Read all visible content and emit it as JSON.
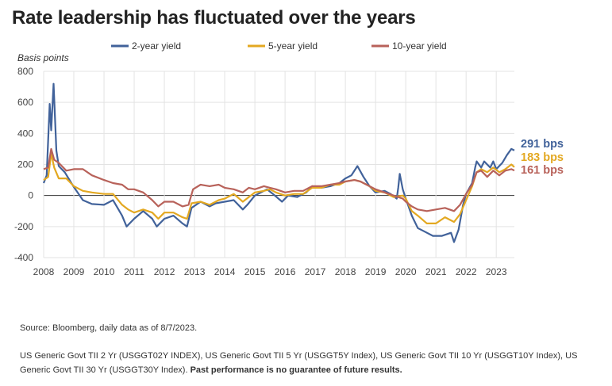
{
  "chart_data": {
    "type": "line",
    "title": "Rate leadership has fluctuated over the years",
    "ylabel": "Basis points",
    "xlabel": "",
    "ylim": [
      -400,
      800
    ],
    "yticks": [
      800,
      600,
      400,
      200,
      0,
      -200,
      -400
    ],
    "xlim": [
      2008,
      2023.6
    ],
    "xticks": [
      "2008",
      "2009",
      "2010",
      "2011",
      "2012",
      "2013",
      "2014",
      "2015",
      "2016",
      "2017",
      "2018",
      "2019",
      "2020",
      "2021",
      "2022",
      "2023"
    ],
    "grid": true,
    "legend_position": "top",
    "series": [
      {
        "name": "2-year yield",
        "color": "#41629a",
        "points": [
          [
            2008.0,
            80
          ],
          [
            2008.1,
            130
          ],
          [
            2008.2,
            590
          ],
          [
            2008.25,
            420
          ],
          [
            2008.33,
            720
          ],
          [
            2008.42,
            290
          ],
          [
            2008.5,
            190
          ],
          [
            2008.7,
            150
          ],
          [
            2009.0,
            55
          ],
          [
            2009.3,
            -30
          ],
          [
            2009.6,
            -55
          ],
          [
            2010.0,
            -60
          ],
          [
            2010.3,
            -30
          ],
          [
            2010.6,
            -130
          ],
          [
            2010.75,
            -200
          ],
          [
            2011.0,
            -150
          ],
          [
            2011.3,
            -100
          ],
          [
            2011.6,
            -150
          ],
          [
            2011.75,
            -200
          ],
          [
            2012.0,
            -150
          ],
          [
            2012.3,
            -130
          ],
          [
            2012.6,
            -180
          ],
          [
            2012.75,
            -200
          ],
          [
            2012.9,
            -80
          ],
          [
            2013.2,
            -40
          ],
          [
            2013.5,
            -70
          ],
          [
            2013.7,
            -50
          ],
          [
            2014.0,
            -40
          ],
          [
            2014.3,
            -30
          ],
          [
            2014.6,
            -90
          ],
          [
            2014.75,
            -60
          ],
          [
            2015.0,
            0
          ],
          [
            2015.2,
            20
          ],
          [
            2015.4,
            40
          ],
          [
            2015.6,
            10
          ],
          [
            2015.9,
            -40
          ],
          [
            2016.1,
            0
          ],
          [
            2016.4,
            -10
          ],
          [
            2016.7,
            20
          ],
          [
            2016.9,
            60
          ],
          [
            2017.2,
            50
          ],
          [
            2017.5,
            60
          ],
          [
            2017.8,
            80
          ],
          [
            2018.0,
            110
          ],
          [
            2018.2,
            130
          ],
          [
            2018.4,
            190
          ],
          [
            2018.6,
            120
          ],
          [
            2018.8,
            60
          ],
          [
            2019.0,
            20
          ],
          [
            2019.3,
            30
          ],
          [
            2019.5,
            10
          ],
          [
            2019.7,
            -20
          ],
          [
            2019.75,
            50
          ],
          [
            2019.8,
            140
          ],
          [
            2019.9,
            40
          ],
          [
            2020.0,
            -20
          ],
          [
            2020.2,
            -130
          ],
          [
            2020.4,
            -210
          ],
          [
            2020.6,
            -230
          ],
          [
            2020.9,
            -260
          ],
          [
            2021.2,
            -260
          ],
          [
            2021.5,
            -240
          ],
          [
            2021.6,
            -300
          ],
          [
            2021.75,
            -220
          ],
          [
            2021.9,
            -60
          ],
          [
            2022.0,
            10
          ],
          [
            2022.2,
            80
          ],
          [
            2022.3,
            180
          ],
          [
            2022.35,
            220
          ],
          [
            2022.5,
            180
          ],
          [
            2022.6,
            220
          ],
          [
            2022.8,
            180
          ],
          [
            2022.9,
            220
          ],
          [
            2023.0,
            170
          ],
          [
            2023.2,
            210
          ],
          [
            2023.35,
            260
          ],
          [
            2023.5,
            300
          ],
          [
            2023.6,
            291
          ]
        ]
      },
      {
        "name": "5-year yield",
        "color": "#e3a821",
        "points": [
          [
            2008.0,
            100
          ],
          [
            2008.15,
            120
          ],
          [
            2008.25,
            270
          ],
          [
            2008.35,
            180
          ],
          [
            2008.5,
            110
          ],
          [
            2008.75,
            110
          ],
          [
            2009.0,
            60
          ],
          [
            2009.3,
            30
          ],
          [
            2009.6,
            20
          ],
          [
            2010.0,
            10
          ],
          [
            2010.3,
            10
          ],
          [
            2010.6,
            -60
          ],
          [
            2010.8,
            -90
          ],
          [
            2011.0,
            -110
          ],
          [
            2011.3,
            -90
          ],
          [
            2011.6,
            -110
          ],
          [
            2011.8,
            -150
          ],
          [
            2012.0,
            -110
          ],
          [
            2012.3,
            -110
          ],
          [
            2012.6,
            -140
          ],
          [
            2012.75,
            -150
          ],
          [
            2012.9,
            -50
          ],
          [
            2013.2,
            -40
          ],
          [
            2013.5,
            -60
          ],
          [
            2013.8,
            -30
          ],
          [
            2014.0,
            -20
          ],
          [
            2014.3,
            10
          ],
          [
            2014.6,
            -40
          ],
          [
            2014.8,
            -10
          ],
          [
            2015.0,
            20
          ],
          [
            2015.3,
            30
          ],
          [
            2015.5,
            40
          ],
          [
            2015.7,
            20
          ],
          [
            2016.0,
            0
          ],
          [
            2016.3,
            10
          ],
          [
            2016.6,
            10
          ],
          [
            2016.9,
            50
          ],
          [
            2017.2,
            50
          ],
          [
            2017.5,
            70
          ],
          [
            2017.8,
            70
          ],
          [
            2018.0,
            90
          ],
          [
            2018.3,
            100
          ],
          [
            2018.5,
            90
          ],
          [
            2018.8,
            60
          ],
          [
            2019.0,
            30
          ],
          [
            2019.3,
            20
          ],
          [
            2019.6,
            -10
          ],
          [
            2019.9,
            0
          ],
          [
            2020.0,
            -20
          ],
          [
            2020.2,
            -100
          ],
          [
            2020.4,
            -130
          ],
          [
            2020.7,
            -180
          ],
          [
            2021.0,
            -180
          ],
          [
            2021.3,
            -140
          ],
          [
            2021.6,
            -170
          ],
          [
            2021.8,
            -120
          ],
          [
            2022.0,
            -30
          ],
          [
            2022.2,
            60
          ],
          [
            2022.35,
            150
          ],
          [
            2022.5,
            170
          ],
          [
            2022.7,
            150
          ],
          [
            2022.9,
            180
          ],
          [
            2023.1,
            150
          ],
          [
            2023.3,
            170
          ],
          [
            2023.5,
            200
          ],
          [
            2023.6,
            183
          ]
        ]
      },
      {
        "name": "10-year yield",
        "color": "#b8625a",
        "points": [
          [
            2008.0,
            170
          ],
          [
            2008.15,
            180
          ],
          [
            2008.25,
            300
          ],
          [
            2008.35,
            230
          ],
          [
            2008.5,
            210
          ],
          [
            2008.75,
            160
          ],
          [
            2009.0,
            170
          ],
          [
            2009.3,
            170
          ],
          [
            2009.6,
            130
          ],
          [
            2010.0,
            100
          ],
          [
            2010.3,
            80
          ],
          [
            2010.6,
            70
          ],
          [
            2010.8,
            40
          ],
          [
            2011.0,
            40
          ],
          [
            2011.3,
            20
          ],
          [
            2011.6,
            -30
          ],
          [
            2011.8,
            -70
          ],
          [
            2012.0,
            -40
          ],
          [
            2012.3,
            -40
          ],
          [
            2012.6,
            -70
          ],
          [
            2012.8,
            -60
          ],
          [
            2012.95,
            40
          ],
          [
            2013.2,
            70
          ],
          [
            2013.5,
            60
          ],
          [
            2013.8,
            70
          ],
          [
            2014.0,
            50
          ],
          [
            2014.3,
            40
          ],
          [
            2014.6,
            20
          ],
          [
            2014.8,
            50
          ],
          [
            2015.0,
            40
          ],
          [
            2015.3,
            60
          ],
          [
            2015.5,
            50
          ],
          [
            2015.7,
            40
          ],
          [
            2016.0,
            20
          ],
          [
            2016.3,
            30
          ],
          [
            2016.6,
            30
          ],
          [
            2016.9,
            60
          ],
          [
            2017.2,
            60
          ],
          [
            2017.5,
            70
          ],
          [
            2017.8,
            80
          ],
          [
            2018.0,
            90
          ],
          [
            2018.3,
            100
          ],
          [
            2018.5,
            90
          ],
          [
            2018.8,
            60
          ],
          [
            2019.0,
            40
          ],
          [
            2019.3,
            20
          ],
          [
            2019.6,
            0
          ],
          [
            2019.9,
            -20
          ],
          [
            2020.0,
            -40
          ],
          [
            2020.2,
            -70
          ],
          [
            2020.4,
            -90
          ],
          [
            2020.7,
            -100
          ],
          [
            2021.0,
            -90
          ],
          [
            2021.3,
            -80
          ],
          [
            2021.6,
            -100
          ],
          [
            2021.8,
            -60
          ],
          [
            2022.0,
            10
          ],
          [
            2022.2,
            70
          ],
          [
            2022.35,
            150
          ],
          [
            2022.5,
            160
          ],
          [
            2022.7,
            120
          ],
          [
            2022.9,
            160
          ],
          [
            2023.1,
            130
          ],
          [
            2023.3,
            160
          ],
          [
            2023.5,
            170
          ],
          [
            2023.6,
            161
          ]
        ]
      }
    ],
    "end_labels": [
      {
        "text": "291 bps",
        "color": "#41629a",
        "value": 291
      },
      {
        "text": "183 bps",
        "color": "#e3a821",
        "value": 183
      },
      {
        "text": "161 bps",
        "color": "#b8625a",
        "value": 161
      }
    ]
  },
  "source_text": "Source: Bloomberg, daily data as of 8/7/2023.",
  "footnote_text": "US Generic Govt TII 2 Yr (USGGT02Y INDEX), US Generic Govt TII 5 Yr (USGGT5Y Index), US Generic Govt TII 10 Yr (USGGT10Y Index), US Generic Govt TII 30 Yr (USGGT30Y Index). ",
  "footnote_bold": "Past performance is no guarantee of future results."
}
